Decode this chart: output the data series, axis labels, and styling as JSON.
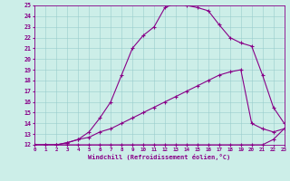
{
  "xlabel": "Windchill (Refroidissement éolien,°C)",
  "background_color": "#cceee8",
  "line_color": "#880088",
  "xlim": [
    0,
    23
  ],
  "ylim": [
    12,
    25
  ],
  "xticks": [
    0,
    1,
    2,
    3,
    4,
    5,
    6,
    7,
    8,
    9,
    10,
    11,
    12,
    13,
    14,
    15,
    16,
    17,
    18,
    19,
    20,
    21,
    22,
    23
  ],
  "yticks": [
    12,
    13,
    14,
    15,
    16,
    17,
    18,
    19,
    20,
    21,
    22,
    23,
    24,
    25
  ],
  "line1_x": [
    0,
    1,
    2,
    3,
    4,
    5,
    6,
    7,
    8,
    9,
    10,
    11,
    12,
    13,
    14,
    15,
    16,
    17,
    18,
    19,
    20,
    21,
    22,
    23
  ],
  "line1_y": [
    12,
    12,
    12,
    12,
    12,
    12,
    12,
    12,
    12,
    12,
    12,
    12,
    12,
    12,
    12,
    12,
    12,
    12,
    12,
    12,
    12,
    12,
    12.5,
    13.5
  ],
  "line2_x": [
    0,
    1,
    2,
    3,
    4,
    5,
    6,
    7,
    8,
    9,
    10,
    11,
    12,
    13,
    14,
    15,
    16,
    17,
    18,
    19,
    20,
    21,
    22,
    23
  ],
  "line2_y": [
    12,
    12,
    12,
    12.2,
    12.5,
    12.7,
    13.2,
    13.5,
    14.0,
    14.5,
    15.0,
    15.5,
    16.0,
    16.5,
    17.0,
    17.5,
    18.0,
    18.5,
    18.8,
    19.0,
    14.0,
    13.5,
    13.2,
    13.5
  ],
  "line3_x": [
    0,
    2,
    3,
    4,
    5,
    6,
    7,
    8,
    9,
    10,
    11,
    12,
    13,
    14,
    15,
    16,
    17,
    18,
    19,
    20,
    21,
    22,
    23
  ],
  "line3_y": [
    12,
    12,
    12.2,
    12.5,
    13.2,
    14.5,
    16.0,
    18.5,
    21.0,
    22.2,
    23.0,
    24.8,
    25.2,
    25.0,
    24.8,
    24.5,
    23.2,
    22.0,
    21.5,
    21.2,
    18.5,
    15.5,
    14.0
  ]
}
